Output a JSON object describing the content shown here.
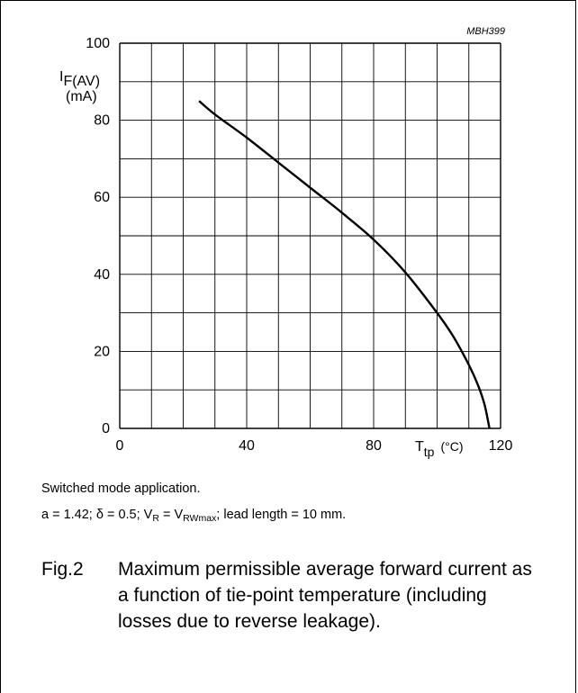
{
  "chart_data": {
    "type": "line",
    "code": "MBH399",
    "ylabel_main": "I",
    "ylabel_sub": "F(AV)",
    "ylabel_unit": "(mA)",
    "xlabel_main": "T",
    "xlabel_sub": "tp",
    "xlabel_unit": "(°C)",
    "xlim": [
      0,
      120
    ],
    "ylim": [
      0,
      100
    ],
    "xticks": [
      0,
      40,
      80,
      120
    ],
    "yticks": [
      0,
      20,
      40,
      60,
      80,
      100
    ],
    "grid": true,
    "x": [
      25,
      30,
      40,
      50,
      60,
      70,
      80,
      90,
      100,
      105,
      110,
      113,
      115,
      116.5
    ],
    "y": [
      85,
      81.5,
      75.5,
      69,
      62.5,
      56,
      49,
      40.5,
      30,
      24,
      16.5,
      11,
      6,
      0
    ]
  },
  "notes": {
    "line1": "Switched mode application.",
    "line2_prefix": "a = 1.42; δ = 0.5; V",
    "line2_sub1": "R",
    "line2_mid": " = V",
    "line2_sub2": "RWmax",
    "line2_suffix": "; lead length = 10 mm."
  },
  "caption": {
    "figure": "Fig.2",
    "text": "Maximum permissible average forward current as a function of tie-point temperature (including losses due to reverse leakage)."
  }
}
